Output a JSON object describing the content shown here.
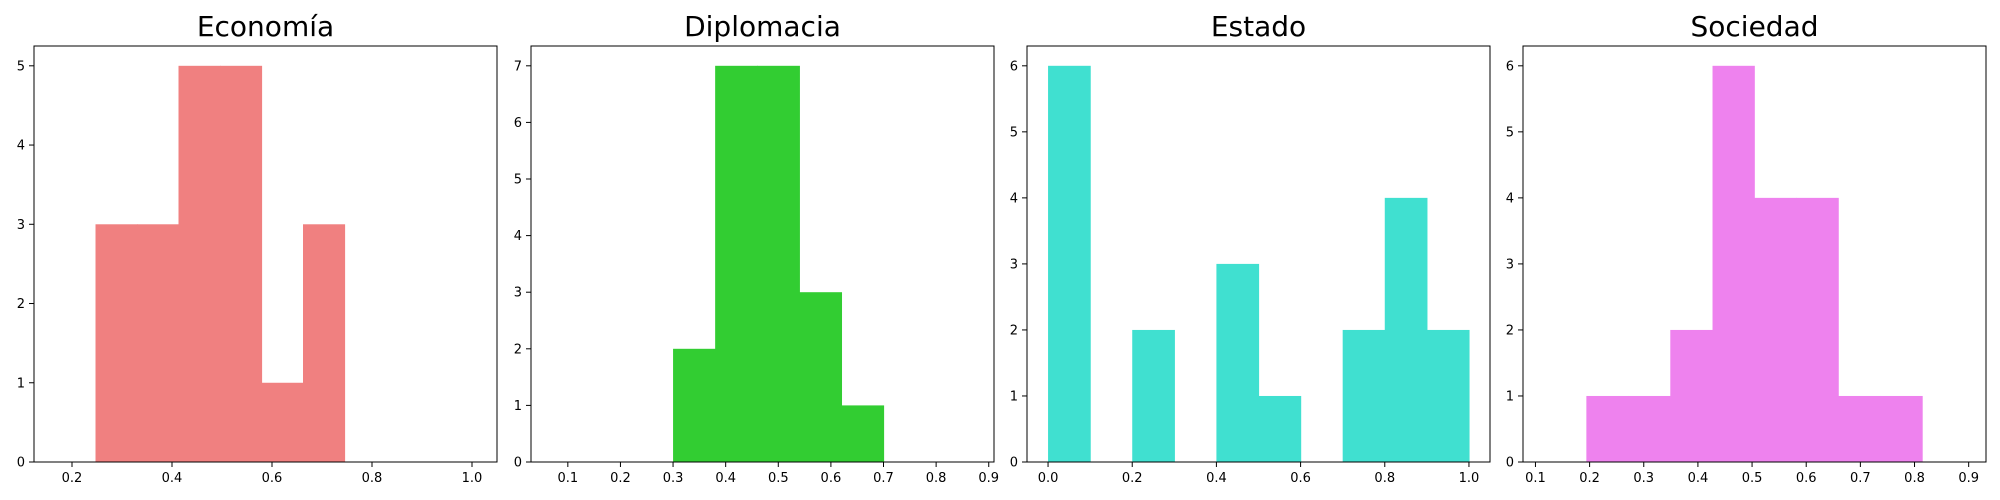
{
  "chart_data": [
    {
      "type": "bar",
      "title": "Economía",
      "color": "#F08080",
      "xlim": [
        0.124,
        1.05
      ],
      "ylim": [
        0,
        5.25
      ],
      "xticks": [
        0.2,
        0.4,
        0.6,
        0.8,
        1.0
      ],
      "xtick_labels": [
        "0.2",
        "0.4",
        "0.6",
        "0.8",
        "1.0"
      ],
      "yticks": [
        0,
        1,
        2,
        3,
        4,
        5
      ],
      "ytick_labels": [
        "0",
        "1",
        "2",
        "3",
        "4",
        "5"
      ],
      "bins": [
        {
          "x0": 0.247,
          "x1": 0.33,
          "count": 3
        },
        {
          "x0": 0.33,
          "x1": 0.413,
          "count": 3
        },
        {
          "x0": 0.413,
          "x1": 0.496,
          "count": 5
        },
        {
          "x0": 0.496,
          "x1": 0.579,
          "count": 5
        },
        {
          "x0": 0.579,
          "x1": 0.662,
          "count": 1
        },
        {
          "x0": 0.662,
          "x1": 0.745,
          "count": 3
        }
      ]
    },
    {
      "type": "bar",
      "title": "Diplomacia",
      "color": "#32CD32",
      "xlim": [
        0.03,
        0.91
      ],
      "ylim": [
        0,
        7.35
      ],
      "xticks": [
        0.1,
        0.2,
        0.3,
        0.4,
        0.5,
        0.6,
        0.7,
        0.8,
        0.9
      ],
      "xtick_labels": [
        "0.1",
        "0.2",
        "0.3",
        "0.4",
        "0.5",
        "0.6",
        "0.7",
        "0.8",
        "0.9"
      ],
      "yticks": [
        0,
        1,
        2,
        3,
        4,
        5,
        6,
        7
      ],
      "ytick_labels": [
        "0",
        "1",
        "2",
        "3",
        "4",
        "5",
        "6",
        "7"
      ],
      "bins": [
        {
          "x0": 0.3,
          "x1": 0.38,
          "count": 2
        },
        {
          "x0": 0.38,
          "x1": 0.46,
          "count": 7
        },
        {
          "x0": 0.46,
          "x1": 0.54,
          "count": 7
        },
        {
          "x0": 0.54,
          "x1": 0.62,
          "count": 3
        },
        {
          "x0": 0.62,
          "x1": 0.7,
          "count": 1
        }
      ]
    },
    {
      "type": "bar",
      "title": "Estado",
      "color": "#40E0D0",
      "xlim": [
        -0.05,
        1.05
      ],
      "ylim": [
        0,
        6.3
      ],
      "xticks": [
        0.0,
        0.2,
        0.4,
        0.6,
        0.8,
        1.0
      ],
      "xtick_labels": [
        "0.0",
        "0.2",
        "0.4",
        "0.6",
        "0.8",
        "1.0"
      ],
      "yticks": [
        0,
        1,
        2,
        3,
        4,
        5,
        6
      ],
      "ytick_labels": [
        "0",
        "1",
        "2",
        "3",
        "4",
        "5",
        "6"
      ],
      "bins": [
        {
          "x0": 0.0,
          "x1": 0.1,
          "count": 6
        },
        {
          "x0": 0.1,
          "x1": 0.2,
          "count": 0
        },
        {
          "x0": 0.2,
          "x1": 0.3,
          "count": 2
        },
        {
          "x0": 0.3,
          "x1": 0.4,
          "count": 0
        },
        {
          "x0": 0.4,
          "x1": 0.5,
          "count": 3
        },
        {
          "x0": 0.5,
          "x1": 0.6,
          "count": 1
        },
        {
          "x0": 0.6,
          "x1": 0.7,
          "count": 0
        },
        {
          "x0": 0.7,
          "x1": 0.8,
          "count": 2
        },
        {
          "x0": 0.8,
          "x1": 0.9,
          "count": 4
        },
        {
          "x0": 0.9,
          "x1": 1.0,
          "count": 2
        }
      ]
    },
    {
      "type": "bar",
      "title": "Sociedad",
      "color": "#EE82EE",
      "xlim": [
        0.077,
        0.932
      ],
      "ylim": [
        0,
        6.3
      ],
      "xticks": [
        0.1,
        0.2,
        0.3,
        0.4,
        0.5,
        0.6,
        0.7,
        0.8,
        0.9
      ],
      "xtick_labels": [
        "0.1",
        "0.2",
        "0.3",
        "0.4",
        "0.5",
        "0.6",
        "0.7",
        "0.8",
        "0.9"
      ],
      "yticks": [
        0,
        1,
        2,
        3,
        4,
        5,
        6
      ],
      "ytick_labels": [
        "0",
        "1",
        "2",
        "3",
        "4",
        "5",
        "6"
      ],
      "bins": [
        {
          "x0": 0.194,
          "x1": 0.271,
          "count": 1
        },
        {
          "x0": 0.271,
          "x1": 0.349,
          "count": 1
        },
        {
          "x0": 0.349,
          "x1": 0.427,
          "count": 2
        },
        {
          "x0": 0.427,
          "x1": 0.504,
          "count": 6
        },
        {
          "x0": 0.504,
          "x1": 0.582,
          "count": 4
        },
        {
          "x0": 0.582,
          "x1": 0.659,
          "count": 4
        },
        {
          "x0": 0.659,
          "x1": 0.737,
          "count": 1
        },
        {
          "x0": 0.737,
          "x1": 0.814,
          "count": 1
        }
      ]
    }
  ]
}
